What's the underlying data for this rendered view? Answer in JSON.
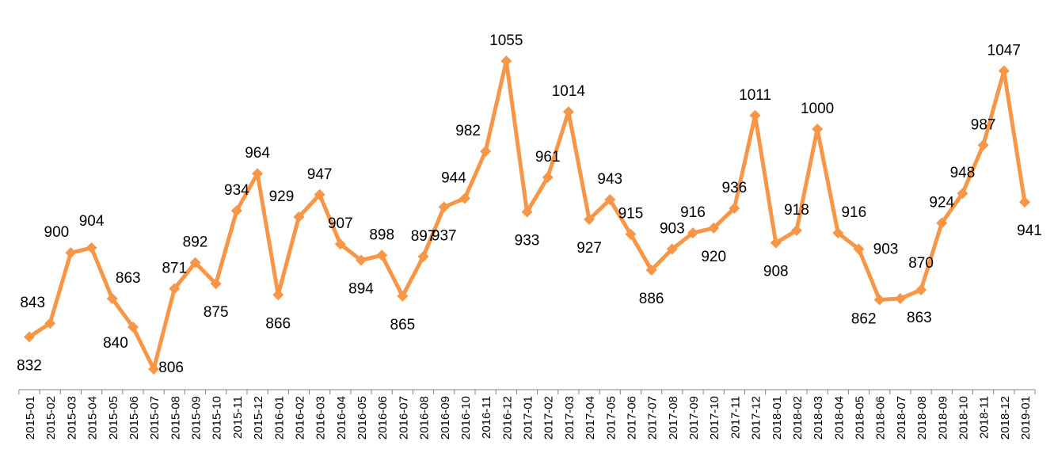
{
  "chart_data": {
    "type": "line",
    "title": "",
    "xlabel": "",
    "ylabel": "",
    "grid": false,
    "legend": "none",
    "color": "#F79646",
    "marker": "diamond",
    "ylim": [
      790,
      1070
    ],
    "categories": [
      "2015-01",
      "2015-02",
      "2015-03",
      "2015-04",
      "2015-05",
      "2015-06",
      "2015-07",
      "2015-08",
      "2015-09",
      "2015-10",
      "2015-11",
      "2015-12",
      "2016-01",
      "2016-02",
      "2016-03",
      "2016-04",
      "2016-05",
      "2016-06",
      "2016-07",
      "2016-08",
      "2016-09",
      "2016-10",
      "2016-11",
      "2016-12",
      "2017-01",
      "2017-02",
      "2017-03",
      "2017-04",
      "2017-05",
      "2017-06",
      "2017-07",
      "2017-08",
      "2017-09",
      "2017-10",
      "2017-11",
      "2017-12",
      "2018-01",
      "2018-02",
      "2018-03",
      "2018-04",
      "2018-05",
      "2018-06",
      "2018-07",
      "2018-08",
      "2018-09",
      "2018-10",
      "2018-11",
      "2018-12",
      "2019-01"
    ],
    "values": [
      832,
      843,
      900,
      904,
      863,
      840,
      806,
      871,
      892,
      875,
      934,
      964,
      866,
      929,
      947,
      907,
      894,
      898,
      865,
      897,
      937,
      944,
      982,
      1055,
      933,
      961,
      1014,
      927,
      943,
      915,
      886,
      903,
      916,
      920,
      936,
      1011,
      908,
      918,
      1000,
      916,
      903,
      862,
      863,
      870,
      924,
      948,
      987,
      1047,
      941
    ]
  }
}
